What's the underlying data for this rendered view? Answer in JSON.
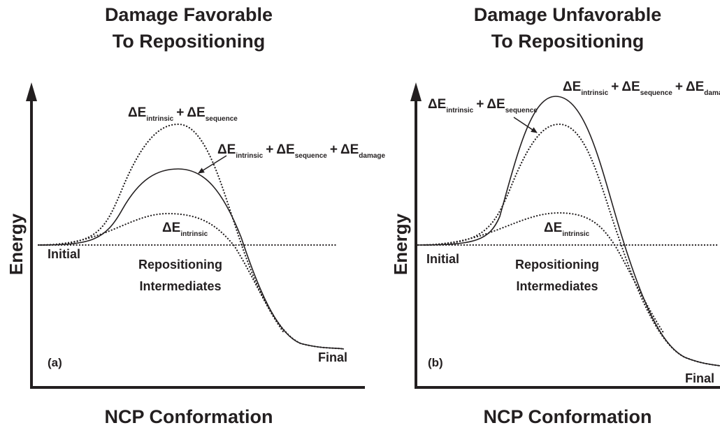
{
  "panels": [
    {
      "title": [
        "Damage Favorable",
        "To Repositioning"
      ],
      "y_label": "Energy",
      "x_label": "NCP Conformation",
      "panel_label": "(a)",
      "state_labels": {
        "initial": "Initial",
        "intermediates": [
          "Repositioning",
          "Intermediates"
        ],
        "final": "Final"
      },
      "annotations": [
        {
          "symbol": "ΔE",
          "joiner": "+",
          "terms": [
            "intrinsic",
            "sequence"
          ]
        },
        {
          "symbol": "ΔE",
          "joiner": "+",
          "terms": [
            "intrinsic",
            "sequence",
            "damage"
          ]
        },
        {
          "symbol": "ΔE",
          "joiner": "+",
          "terms": [
            "intrinsic"
          ]
        }
      ]
    },
    {
      "title": [
        "Damage Unfavorable",
        "To Repositioning"
      ],
      "y_label": "Energy",
      "x_label": "NCP Conformation",
      "panel_label": "(b)",
      "state_labels": {
        "initial": "Initial",
        "intermediates": [
          "Repositioning",
          "Intermediates"
        ],
        "final": "Final"
      },
      "annotations": [
        {
          "symbol": "ΔE",
          "joiner": "+",
          "terms": [
            "intrinsic",
            "sequence"
          ]
        },
        {
          "symbol": "ΔE",
          "joiner": "+",
          "terms": [
            "intrinsic",
            "sequence",
            "damage"
          ]
        },
        {
          "symbol": "ΔE",
          "joiner": "+",
          "terms": [
            "intrinsic"
          ]
        }
      ]
    }
  ]
}
